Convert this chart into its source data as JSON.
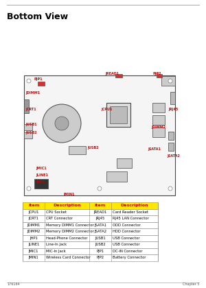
{
  "title": "Bottom View",
  "page_info": "Page 176164",
  "chapter": "Chapter 5",
  "header_color": "#FFE800",
  "header_text_color": "#CC0000",
  "table_border_color": "#888888",
  "table_bg_color": "#FFFFFF",
  "col_headers": [
    "Item",
    "Description",
    "Item",
    "Description"
  ],
  "rows": [
    [
      "JCPU1",
      "CPU Socket",
      "JREAD1",
      "Card Reader Socket"
    ],
    [
      "JCRT1",
      "CRT Connector",
      "JRJ45",
      "RJ45 LAN Connector"
    ],
    [
      "JDIMM1",
      "Memory DIMM1 Connector",
      "JSATA1",
      "ODD Connector"
    ],
    [
      "JDIMM2",
      "Memory DIMM2 Connector",
      "JSATA2",
      "HDD Connector"
    ],
    [
      "JHP1",
      "Head-Phone Connector",
      "JUSB1",
      "USB Connector"
    ],
    [
      "JLINE1",
      "Line-In Jack",
      "JUSB2",
      "USB Connector"
    ],
    [
      "JMIC1",
      "MIC-In Jack",
      "PJP1",
      "DC-IN Connector"
    ],
    [
      "JMIN1",
      "Wireless Card Connector",
      "PJP2",
      "Battery Connector"
    ]
  ],
  "diagram_bg": "#FFFFFF",
  "board_color": "#EEEEEE",
  "board_outline": "#444444",
  "label_color": "#CC0000",
  "top_line_color": "#AAAAAA",
  "bottom_line_color": "#AAAAAA"
}
